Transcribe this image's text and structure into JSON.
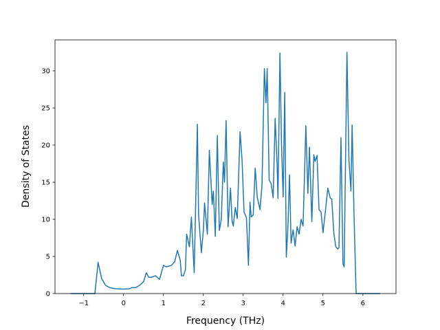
{
  "chart_data": {
    "type": "line",
    "x_label": "Frequency (THz)",
    "y_label": "Density of States",
    "xlim": [
      -1.72,
      6.83
    ],
    "ylim": [
      0,
      34.17
    ],
    "xticks": [
      {
        "value": -1,
        "label": "−1"
      },
      0,
      1,
      2,
      3,
      4,
      5,
      6
    ],
    "yticks": [
      0,
      5,
      10,
      15,
      20,
      25,
      30
    ],
    "series": [
      {
        "color": "#1f77b4",
        "x": [
          -1.33,
          -0.72,
          -0.64,
          -0.55,
          -0.45,
          -0.35,
          -0.2,
          0,
          0.15,
          0.2,
          0.3,
          0.4,
          0.5,
          0.57,
          0.63,
          0.7,
          0.8,
          0.9,
          1.0,
          1.07,
          1.2,
          1.28,
          1.35,
          1.42,
          1.45,
          1.5,
          1.55,
          1.58,
          1.65,
          1.7,
          1.77,
          1.85,
          1.88,
          1.95,
          2.0,
          2.03,
          2.1,
          2.15,
          2.22,
          2.25,
          2.3,
          2.35,
          2.4,
          2.45,
          2.5,
          2.53,
          2.57,
          2.62,
          2.68,
          2.72,
          2.75,
          2.8,
          2.85,
          2.92,
          2.97,
          3.02,
          3.08,
          3.13,
          3.17,
          3.2,
          3.25,
          3.3,
          3.35,
          3.42,
          3.47,
          3.53,
          3.57,
          3.6,
          3.65,
          3.7,
          3.75,
          3.8,
          3.85,
          3.87,
          3.92,
          3.96,
          4.0,
          4.04,
          4.08,
          4.12,
          4.16,
          4.2,
          4.25,
          4.3,
          4.35,
          4.4,
          4.45,
          4.5,
          4.57,
          4.62,
          4.66,
          4.72,
          4.77,
          4.8,
          4.85,
          4.9,
          4.95,
          5.0,
          5.05,
          5.12,
          5.18,
          5.22,
          5.27,
          5.32,
          5.37,
          5.4,
          5.45,
          5.5,
          5.53,
          5.6,
          5.65,
          5.7,
          5.73,
          5.78,
          5.83,
          6.43
        ],
        "values": [
          0,
          0,
          4.2,
          2.0,
          1.1,
          0.8,
          0.65,
          0.6,
          0.65,
          0.8,
          0.8,
          1.1,
          1.6,
          2.8,
          2.2,
          2.2,
          2.4,
          1.9,
          3.8,
          3.6,
          3.8,
          4.3,
          5.8,
          4.5,
          2.4,
          2.4,
          3.2,
          8.0,
          6.3,
          10.3,
          2.8,
          22.8,
          10.6,
          5.5,
          8.5,
          12.2,
          8.0,
          19.3,
          12.0,
          13.8,
          7.7,
          21.3,
          8.5,
          10.0,
          17.7,
          15.0,
          23.3,
          9.0,
          14.2,
          9.8,
          9.1,
          11.6,
          10.1,
          21.8,
          18.0,
          11.0,
          10.2,
          3.8,
          12.3,
          10.3,
          10.6,
          16.9,
          13.0,
          11.3,
          14.6,
          30.3,
          25.7,
          30.3,
          15.3,
          14.8,
          12.9,
          23.6,
          17.3,
          12.8,
          32.4,
          20.0,
          13.0,
          27.1,
          4.9,
          9.0,
          16.0,
          6.8,
          8.6,
          6.4,
          9.0,
          8.0,
          10.0,
          9.1,
          22.6,
          13.5,
          19.7,
          9.7,
          18.7,
          17.8,
          18.6,
          11.3,
          11.0,
          8.2,
          10.6,
          14.2,
          12.9,
          12.7,
          8.2,
          6.3,
          6.0,
          6.2,
          21.0,
          4.0,
          3.6,
          32.5,
          18.0,
          13.8,
          22.7,
          10.0,
          0,
          0
        ]
      }
    ]
  }
}
